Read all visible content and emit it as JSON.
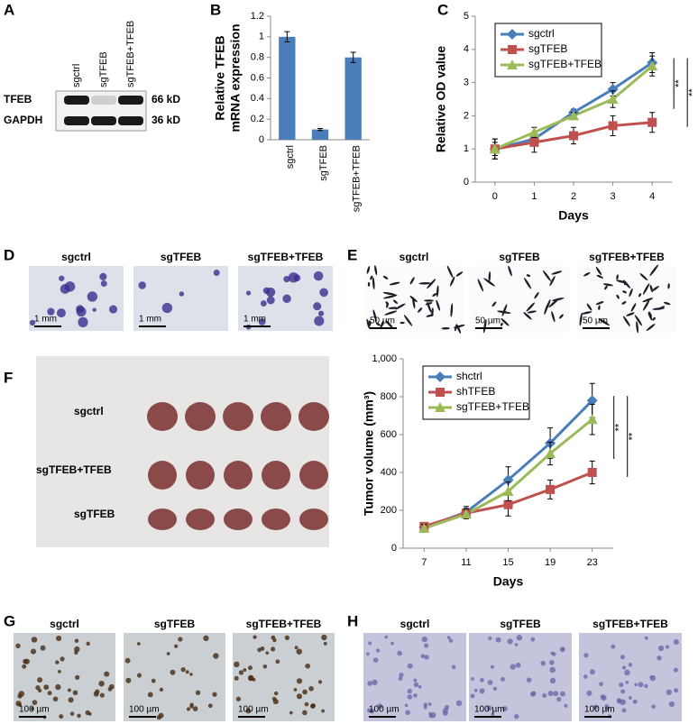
{
  "panel_labels": [
    "A",
    "B",
    "C",
    "D",
    "E",
    "F",
    "G",
    "H"
  ],
  "blot": {
    "lanes": [
      "sgctrl",
      "sgTFEB",
      "sgTFEB+TFEB"
    ],
    "rows": [
      {
        "name": "TFEB",
        "size": "66 kD"
      },
      {
        "name": "GAPDH",
        "size": "36 kD"
      }
    ]
  },
  "colony": {
    "labels": [
      "sgctrl",
      "sgTFEB",
      "sgTFEB+TFEB"
    ],
    "scale_bar": "1 mm"
  },
  "transwell": {
    "labels": [
      "sgctrl",
      "sgTFEB",
      "sgTFEB+TFEB"
    ],
    "scale_bar": "50 µm"
  },
  "tumors": {
    "rows": [
      "sgctrl",
      "sgTFEB+TFEB",
      "sgTFEB"
    ]
  },
  "ihc_g": {
    "labels": [
      "sgctrl",
      "sgTFEB",
      "sgTFEB+TFEB"
    ],
    "scale_bar": "100 µm"
  },
  "ihc_h": {
    "labels": [
      "sgctrl",
      "sgTFEB",
      "sgTFEB+TFEB"
    ],
    "scale_bar": "100 µm"
  },
  "chart_data": [
    {
      "type": "bar",
      "y_label": [
        "Relative TFEB",
        "mRNA expression"
      ],
      "categories": [
        "sgctrl",
        "sgTFEB",
        "sgTFEB+TFEB"
      ],
      "values": [
        1.0,
        0.1,
        0.8
      ],
      "errors": [
        0.05,
        0.01,
        0.05
      ],
      "color": "#4a7ebb",
      "ylim": [
        0,
        1.2
      ],
      "yticks": [
        0,
        0.2,
        0.4,
        0.6,
        0.8,
        1,
        1.2
      ]
    },
    {
      "type": "line",
      "x_label": "Days",
      "y_label": "Relative OD value",
      "x": [
        0,
        1,
        2,
        3,
        4
      ],
      "xlim": [
        -0.5,
        4.5
      ],
      "xticks": [
        0,
        1,
        2,
        3,
        4
      ],
      "ylim": [
        0,
        5
      ],
      "yticks": [
        0,
        1,
        2,
        3,
        4,
        5
      ],
      "legend": "upper left",
      "series": [
        {
          "name": "sgctrl",
          "color": "#4a7ebb",
          "marker": "diamond",
          "values": [
            1.0,
            1.3,
            2.1,
            2.8,
            3.6
          ],
          "errors": [
            0.3,
            0.15,
            0.1,
            0.2,
            0.3
          ]
        },
        {
          "name": "sgTFEB",
          "color": "#c0504d",
          "marker": "square",
          "values": [
            1.0,
            1.2,
            1.4,
            1.7,
            1.8
          ],
          "errors": [
            0.3,
            0.3,
            0.25,
            0.3,
            0.3
          ]
        },
        {
          "name": "sgTFEB+TFEB",
          "color": "#9bbb59",
          "marker": "triangle",
          "values": [
            1.0,
            1.5,
            2.0,
            2.5,
            3.5
          ],
          "errors": [
            0.2,
            0.15,
            0.1,
            0.25,
            0.3
          ]
        }
      ],
      "annotations": [
        "**",
        "**"
      ]
    },
    {
      "type": "line",
      "x_label": "Days",
      "y_label": "Tumor volume (mm³)",
      "x": [
        7,
        11,
        15,
        19,
        23
      ],
      "xlim": [
        5,
        25
      ],
      "xticks": [
        7,
        11,
        15,
        19,
        23
      ],
      "ylim": [
        0,
        1000
      ],
      "yticks": [
        0,
        200,
        400,
        600,
        800,
        {
          "value": 1000,
          "label": "1,000"
        }
      ],
      "legend": "upper left",
      "series": [
        {
          "name": "shctrl",
          "color": "#4a7ebb",
          "marker": "diamond",
          "values": [
            110,
            190,
            360,
            555,
            780
          ],
          "errors": [
            20,
            30,
            70,
            80,
            90
          ]
        },
        {
          "name": "shTFEB",
          "color": "#c0504d",
          "marker": "square",
          "values": [
            115,
            185,
            230,
            310,
            400
          ],
          "errors": [
            20,
            25,
            60,
            50,
            60
          ]
        },
        {
          "name": "sgTFEB+TFEB",
          "color": "#9bbb59",
          "marker": "triangle",
          "values": [
            105,
            180,
            300,
            500,
            680
          ],
          "errors": [
            20,
            25,
            50,
            60,
            80
          ]
        }
      ],
      "annotations": [
        "**",
        "**"
      ]
    }
  ]
}
